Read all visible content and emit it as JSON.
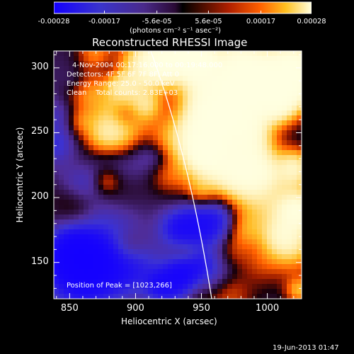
{
  "title": "Reconstructed RHESSI Image",
  "colorbar": {
    "ticks": [
      "-0.00028",
      "-0.00017",
      "-5.6e-05",
      "5.6e-05",
      "0.00017",
      "0.00028"
    ],
    "tick_values": [
      -0.00028,
      -0.00017,
      -5.6e-05,
      5.6e-05,
      0.00017,
      0.00028
    ],
    "range": [
      -0.00028,
      0.00028
    ],
    "unit_label": "(photons cm⁻² s⁻¹ asec⁻²)"
  },
  "info": {
    "time_range": "4-Nov-2004 00:17:16.000 to 00:19:48.000",
    "detectors": "Detectors: 4F 5F 6F 7F 8F, Att 0",
    "energy": "Energy Range: 25.0 - 50.0 keV",
    "clean": "Clean    Total counts: 2.83E+03",
    "peak": "Position of Peak = [1023,266]"
  },
  "axes": {
    "xlabel": "Heliocentric X (arcsec)",
    "ylabel": "Heliocentric Y (arcsec)",
    "x_ticks": [
      "850",
      "900",
      "950",
      "1000"
    ],
    "x_tick_values": [
      850,
      900,
      950,
      1000
    ],
    "y_ticks": [
      "150",
      "200",
      "250",
      "300"
    ],
    "y_tick_values": [
      150,
      200,
      250,
      300
    ],
    "xlim": [
      838,
      1026
    ],
    "ylim": [
      122,
      313
    ]
  },
  "timestamp": "19-Jun-2013 01:47",
  "colors": {
    "background": "#000000",
    "limb_line": "#ffffff"
  }
}
